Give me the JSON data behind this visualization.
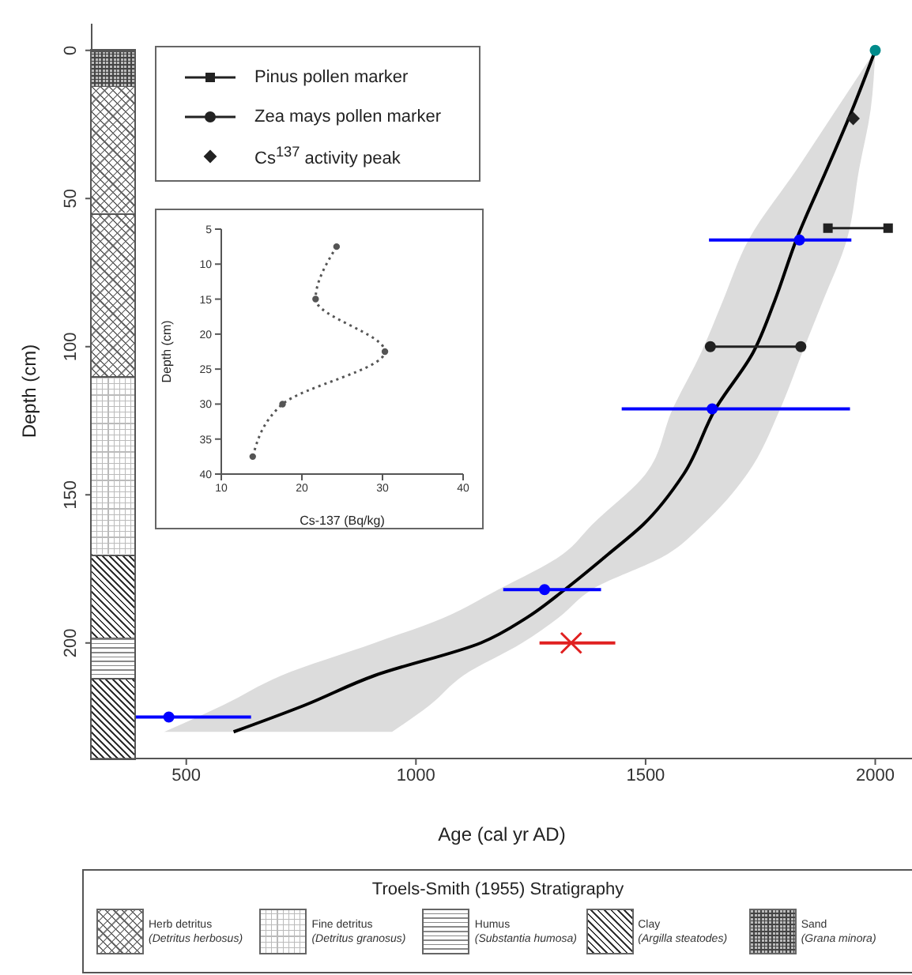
{
  "chart_data": [
    {
      "type": "line",
      "orientation": "horizontal",
      "xlabel": "Age (cal yr AD)",
      "ylabel": "Depth (cm)",
      "xlim": [
        294,
        2080
      ],
      "xticks": [
        500,
        1000,
        1500,
        2000
      ],
      "ylim": [
        239,
        -9
      ],
      "yticks": [
        0,
        50,
        100,
        150,
        200
      ],
      "legend": "top left",
      "series": [
        {
          "type": "line",
          "color": "#000000",
          "x": [
            0,
            20,
            40,
            64,
            85,
            102,
            121,
            143,
            160,
            170,
            182,
            191.5,
            200,
            211,
            221,
            230
          ],
          "values": [
            2000,
            1950,
            1895,
            1828,
            1780,
            1734,
            1652,
            1583,
            1495,
            1419,
            1324,
            1241,
            1141,
            910,
            758,
            603
          ],
          "lower": [
            2000,
            1915,
            1830,
            1724,
            1667,
            1621,
            1559,
            1500,
            1384,
            1320,
            1179,
            1060,
            910,
            707,
            580,
            452
          ],
          "upper": [
            2000,
            1990,
            1965,
            1938,
            1885,
            1841,
            1793,
            1721,
            1625,
            1548,
            1383,
            1310,
            1231,
            1103,
            1030,
            948
          ]
        },
        {
          "type": "line",
          "name": "Pinus pollen marker",
          "color": "#222222",
          "marker": "square",
          "x": [
            60,
            60
          ],
          "values": [
            1897,
            2028
          ]
        },
        {
          "type": "line",
          "name": "Zea mays pollen marker",
          "color": "#222222",
          "marker": "circle",
          "x": [
            100,
            100
          ],
          "values": [
            1641,
            1838
          ]
        },
        {
          "type": "scatter",
          "name": "Cs$^{137}$ activity peak",
          "color": "#222222",
          "marker": "diamond",
          "x": [
            23
          ],
          "values": [
            1952
          ]
        },
        {
          "type": "scatter",
          "color": "#0000ff",
          "marker": "circle",
          "x": [
            64,
            121,
            182,
            225
          ],
          "values": [
            1835,
            1645,
            1280,
            462
          ],
          "errors": [
            [
              1638,
              1948
            ],
            [
              1448,
              1945
            ],
            [
              1190,
              1403
            ],
            [
              390,
              641
            ]
          ]
        },
        {
          "type": "scatter",
          "color": "#e02020",
          "marker": "cross",
          "x": [
            200
          ],
          "values": [
            1338
          ],
          "errors": [
            [
              1269,
              1434
            ]
          ]
        },
        {
          "type": "scatter",
          "color": "#008b8b",
          "marker": "circle",
          "x": [
            0
          ],
          "values": [
            2000
          ]
        }
      ],
      "annotations": [
        "Troels-Smith (1955) Stratigraphy",
        "Herb detritus",
        "(Detritus herbosus)",
        "Fine detritus",
        "(Detritus granosus)",
        "Humus",
        "(Substantia humosa)",
        "Clay",
        "(Argilla steatodes)",
        "Sand",
        "(Grana minora)"
      ]
    },
    {
      "type": "line",
      "orientation": "horizontal",
      "xlabel": "Cs-137 (Bq/kg)",
      "ylabel": "Depth (cm)",
      "xlim": [
        10,
        40
      ],
      "xticks": [
        10,
        20,
        30,
        40
      ],
      "ylim": [
        40,
        5
      ],
      "yticks": [
        5,
        10,
        15,
        20,
        25,
        30,
        35,
        40
      ],
      "line_style": "dotted",
      "marker": "circle",
      "series": [
        {
          "color": "#555555",
          "x": [
            7.5,
            15,
            22.5,
            30,
            37.5
          ],
          "values": [
            24.3,
            21.7,
            30.3,
            17.6,
            13.9
          ]
        }
      ]
    }
  ]
}
